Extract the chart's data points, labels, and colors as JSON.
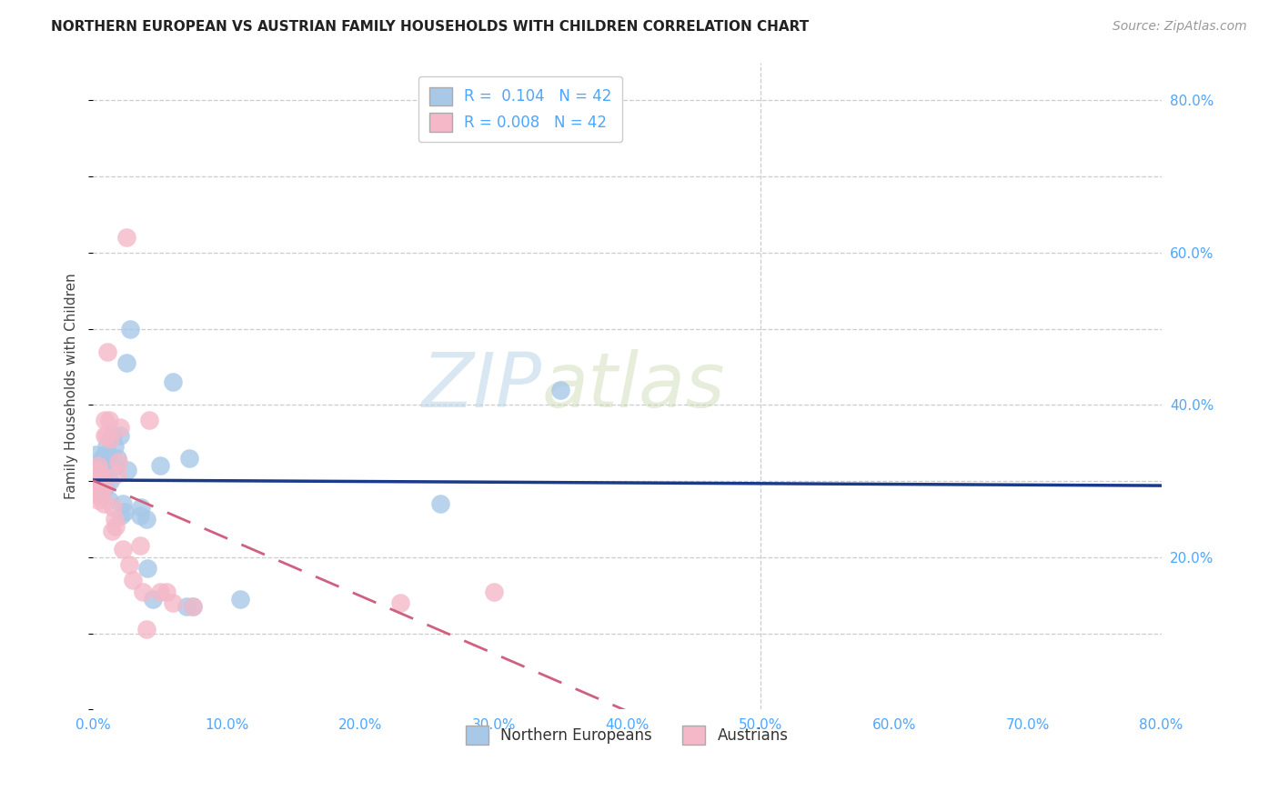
{
  "title": "NORTHERN EUROPEAN VS AUSTRIAN FAMILY HOUSEHOLDS WITH CHILDREN CORRELATION CHART",
  "source": "Source: ZipAtlas.com",
  "ylabel": "Family Households with Children",
  "watermark": "ZIPatlas",
  "legend_r_blue": "R =  0.104",
  "legend_n_blue": "N = 42",
  "legend_r_pink": "R = 0.008",
  "legend_n_pink": "N = 42",
  "blue_color": "#a8c8e8",
  "pink_color": "#f4b8c8",
  "line_blue": "#1a3a8a",
  "line_pink": "#d06080",
  "blue_scatter": [
    [
      0.002,
      0.335
    ],
    [
      0.003,
      0.31
    ],
    [
      0.004,
      0.32
    ],
    [
      0.004,
      0.295
    ],
    [
      0.005,
      0.285
    ],
    [
      0.005,
      0.3
    ],
    [
      0.006,
      0.31
    ],
    [
      0.006,
      0.285
    ],
    [
      0.007,
      0.33
    ],
    [
      0.007,
      0.325
    ],
    [
      0.008,
      0.3
    ],
    [
      0.008,
      0.315
    ],
    [
      0.009,
      0.335
    ],
    [
      0.009,
      0.29
    ],
    [
      0.01,
      0.345
    ],
    [
      0.011,
      0.33
    ],
    [
      0.012,
      0.275
    ],
    [
      0.013,
      0.3
    ],
    [
      0.015,
      0.36
    ],
    [
      0.016,
      0.345
    ],
    [
      0.017,
      0.32
    ],
    [
      0.018,
      0.33
    ],
    [
      0.02,
      0.36
    ],
    [
      0.021,
      0.255
    ],
    [
      0.022,
      0.27
    ],
    [
      0.024,
      0.26
    ],
    [
      0.025,
      0.455
    ],
    [
      0.026,
      0.315
    ],
    [
      0.028,
      0.5
    ],
    [
      0.035,
      0.255
    ],
    [
      0.036,
      0.265
    ],
    [
      0.04,
      0.25
    ],
    [
      0.041,
      0.185
    ],
    [
      0.045,
      0.145
    ],
    [
      0.05,
      0.32
    ],
    [
      0.06,
      0.43
    ],
    [
      0.07,
      0.135
    ],
    [
      0.072,
      0.33
    ],
    [
      0.075,
      0.135
    ],
    [
      0.11,
      0.145
    ],
    [
      0.26,
      0.27
    ],
    [
      0.35,
      0.42
    ]
  ],
  "pink_scatter": [
    [
      0.001,
      0.315
    ],
    [
      0.002,
      0.31
    ],
    [
      0.002,
      0.3
    ],
    [
      0.003,
      0.295
    ],
    [
      0.003,
      0.285
    ],
    [
      0.004,
      0.32
    ],
    [
      0.004,
      0.275
    ],
    [
      0.005,
      0.29
    ],
    [
      0.005,
      0.28
    ],
    [
      0.006,
      0.305
    ],
    [
      0.006,
      0.31
    ],
    [
      0.007,
      0.3
    ],
    [
      0.007,
      0.285
    ],
    [
      0.008,
      0.27
    ],
    [
      0.008,
      0.295
    ],
    [
      0.009,
      0.38
    ],
    [
      0.009,
      0.36
    ],
    [
      0.01,
      0.36
    ],
    [
      0.011,
      0.47
    ],
    [
      0.012,
      0.38
    ],
    [
      0.013,
      0.355
    ],
    [
      0.014,
      0.235
    ],
    [
      0.015,
      0.265
    ],
    [
      0.016,
      0.25
    ],
    [
      0.017,
      0.24
    ],
    [
      0.018,
      0.31
    ],
    [
      0.019,
      0.325
    ],
    [
      0.02,
      0.37
    ],
    [
      0.022,
      0.21
    ],
    [
      0.025,
      0.62
    ],
    [
      0.027,
      0.19
    ],
    [
      0.03,
      0.17
    ],
    [
      0.035,
      0.215
    ],
    [
      0.037,
      0.155
    ],
    [
      0.04,
      0.105
    ],
    [
      0.042,
      0.38
    ],
    [
      0.05,
      0.155
    ],
    [
      0.055,
      0.155
    ],
    [
      0.06,
      0.14
    ],
    [
      0.075,
      0.135
    ],
    [
      0.23,
      0.14
    ],
    [
      0.3,
      0.155
    ]
  ],
  "xmin": 0.0,
  "xmax": 0.8,
  "ymin": 0.0,
  "ymax": 0.85,
  "xtick_vals": [
    0.0,
    0.1,
    0.2,
    0.3,
    0.4,
    0.5,
    0.6,
    0.7,
    0.8
  ],
  "ytick_vals": [
    0.2,
    0.4,
    0.6,
    0.8
  ],
  "grid_yticks": [
    0.1,
    0.2,
    0.3,
    0.4,
    0.5,
    0.6,
    0.7,
    0.8
  ],
  "grid_color": "#cccccc",
  "tick_color": "#4da6ff"
}
